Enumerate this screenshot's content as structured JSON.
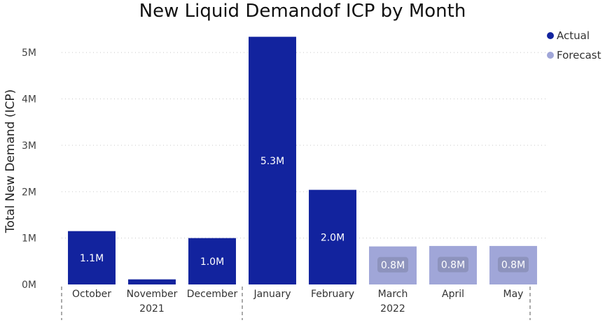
{
  "chart_data": {
    "type": "bar",
    "title": "New Liquid Demandof ICP by Month",
    "ylabel": "Total New Demand (ICP)",
    "xlabel": "",
    "ylim": [
      0,
      5500000
    ],
    "yticks": [
      0,
      1000000,
      2000000,
      3000000,
      4000000,
      5000000
    ],
    "ytick_labels": [
      "0M",
      "1M",
      "2M",
      "3M",
      "4M",
      "5M"
    ],
    "grid": true,
    "legend_position": "top-right",
    "categories": [
      "October",
      "November",
      "December",
      "January",
      "February",
      "March",
      "April",
      "May"
    ],
    "groups": [
      {
        "label": "2021",
        "categories": [
          "October",
          "November",
          "December"
        ]
      },
      {
        "label": "2022",
        "categories": [
          "January",
          "February",
          "March",
          "April",
          "May"
        ]
      }
    ],
    "series": [
      {
        "name": "Actual",
        "color": "#12239E",
        "values": [
          1150000,
          110000,
          1000000,
          5340000,
          2040000,
          null,
          null,
          null
        ],
        "labels": [
          "1.1M",
          "",
          "1.0M",
          "5.3M",
          "2.0M",
          "",
          "",
          ""
        ]
      },
      {
        "name": "Forecast",
        "color": "#A0A6D8",
        "values": [
          null,
          null,
          null,
          null,
          null,
          820000,
          830000,
          830000
        ],
        "labels": [
          "",
          "",
          "",
          "",
          "",
          "0.8M",
          "0.8M",
          "0.8M"
        ]
      }
    ]
  }
}
